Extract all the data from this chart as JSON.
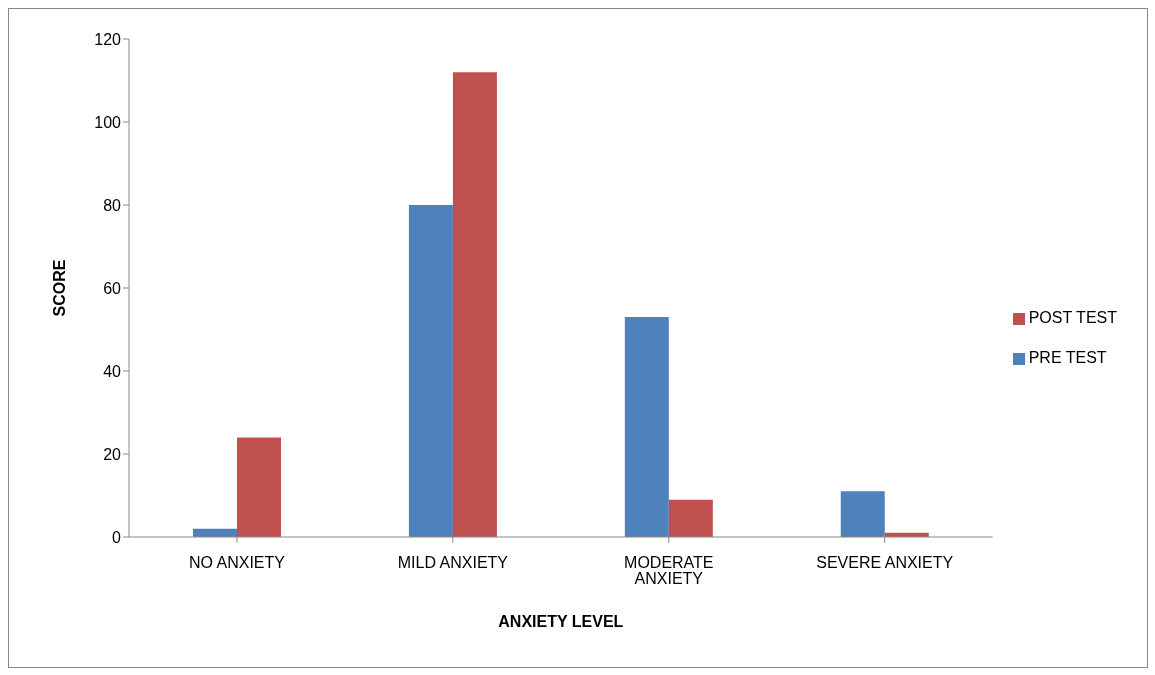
{
  "chart_data": {
    "type": "bar",
    "xlabel": "ANXIETY LEVEL",
    "ylabel": "SCORE",
    "categories": [
      "NO ANXIETY",
      "MILD ANXIETY",
      "MODERATE ANXIETY",
      "SEVERE ANXIETY"
    ],
    "series": [
      {
        "name": "PRE TEST",
        "color": "#4f81bd",
        "values": [
          2,
          80,
          53,
          11
        ]
      },
      {
        "name": "POST TEST",
        "color": "#c0504d",
        "values": [
          24,
          112,
          9,
          1
        ]
      }
    ],
    "ylim": [
      0,
      120
    ],
    "yticks": [
      0,
      20,
      40,
      60,
      80,
      100,
      120
    ],
    "grid": false,
    "legend": "right"
  }
}
